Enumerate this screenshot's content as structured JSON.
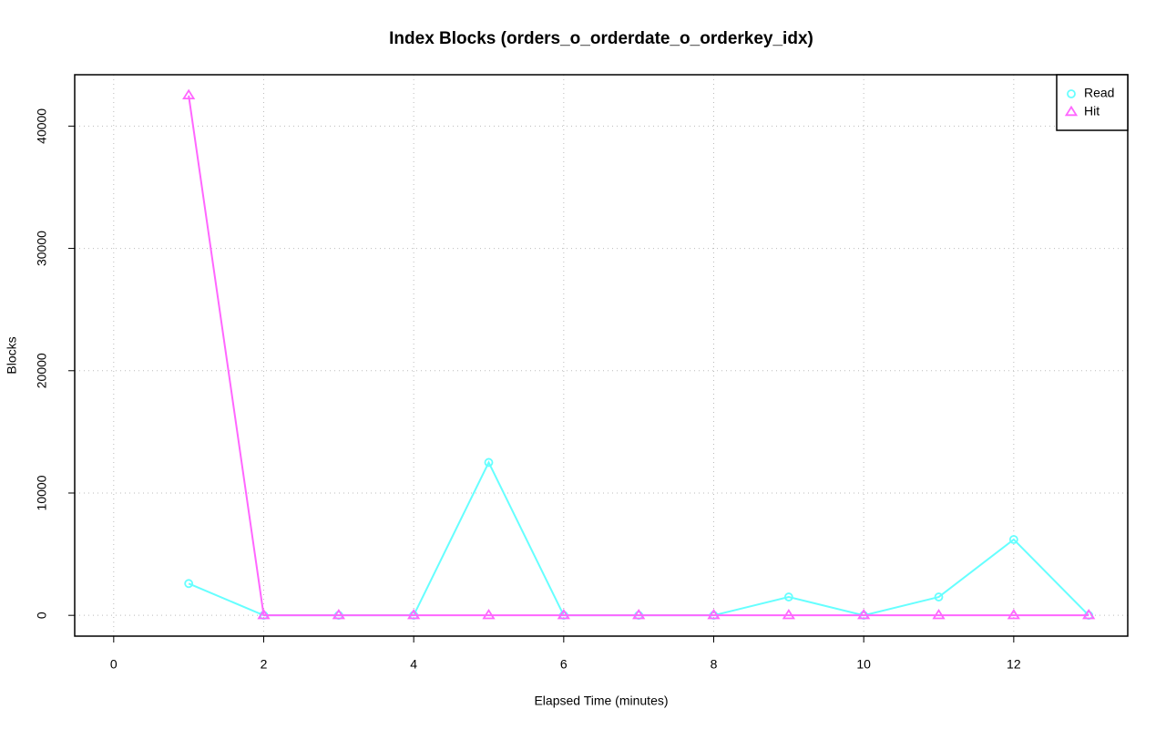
{
  "chart_data": {
    "type": "line",
    "title": "Index Blocks (orders_o_orderdate_o_orderkey_idx)",
    "x_label": "Elapsed Time (minutes)",
    "y_label": "Blocks",
    "x": [
      1,
      2,
      3,
      4,
      5,
      6,
      7,
      8,
      9,
      10,
      11,
      12,
      13
    ],
    "series": [
      {
        "name": "Read",
        "color": "#66ffff",
        "marker": "circle",
        "values": [
          2600,
          0,
          0,
          0,
          12500,
          0,
          0,
          0,
          1500,
          0,
          1500,
          6200,
          0
        ]
      },
      {
        "name": "Hit",
        "color": "#ff66ff",
        "marker": "triangle",
        "values": [
          42500,
          0,
          0,
          0,
          0,
          0,
          0,
          0,
          0,
          0,
          0,
          0,
          0
        ]
      }
    ],
    "xlim": [
      -0.52,
      13.52
    ],
    "xticks": [
      0,
      2,
      4,
      6,
      8,
      10,
      12
    ],
    "ylim": [
      -1700,
      44200
    ],
    "yticks": [
      0,
      10000,
      20000,
      30000,
      40000
    ],
    "grid": true,
    "legend": "top-right"
  }
}
